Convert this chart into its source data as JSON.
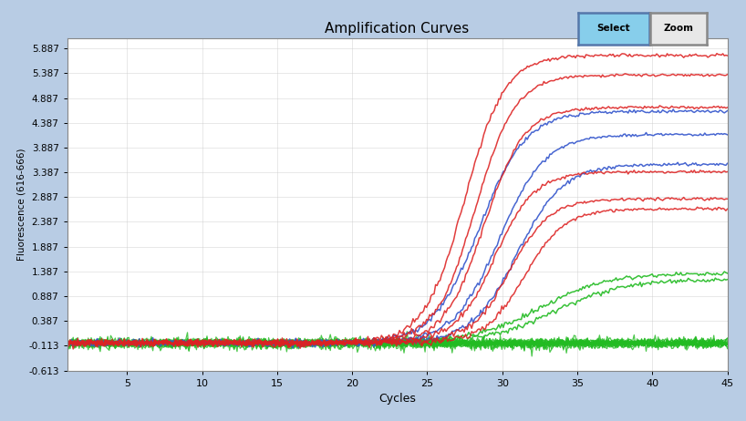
{
  "title": "Amplification Curves",
  "xlabel": "Cycles",
  "ylabel": "Fluorescence (616-666)",
  "xlim": [
    1,
    45
  ],
  "ylim": [
    -0.613,
    6.1
  ],
  "yticks": [
    -0.613,
    -0.113,
    0.387,
    0.887,
    1.387,
    1.887,
    2.387,
    2.887,
    3.387,
    3.887,
    4.387,
    4.887,
    5.387,
    5.887
  ],
  "xticks": [
    5,
    10,
    15,
    20,
    25,
    30,
    35,
    40,
    45
  ],
  "background_color": "#b8cce4",
  "plot_bg_color": "#ffffff",
  "red_curves": {
    "midpoints": [
      27.5,
      28.2,
      28.8,
      29.5,
      30.5,
      31.5
    ],
    "plateaus": [
      5.75,
      5.35,
      4.7,
      3.4,
      2.85,
      2.65
    ],
    "steepness": 0.75,
    "baseline": -0.055,
    "noise_flat": 0.035,
    "noise_plateau": 0.015
  },
  "blue_curves": {
    "midpoints": [
      28.5,
      29.8,
      31.0
    ],
    "plateaus": [
      4.62,
      4.15,
      3.55
    ],
    "steepness": 0.65,
    "baseline": -0.055,
    "noise_flat": 0.032,
    "noise_plateau": 0.015
  },
  "green_high_curves": {
    "midpoints": [
      32.5,
      33.5
    ],
    "plateaus": [
      1.35,
      1.22
    ],
    "steepness": 0.45,
    "baseline": -0.055,
    "noise_flat": 0.032,
    "noise_plateau": 0.02
  },
  "green_flat_curves": {
    "count": 14,
    "baselines": [
      -0.06,
      -0.07,
      -0.05,
      -0.065,
      -0.055,
      -0.075,
      -0.06,
      -0.05,
      -0.065,
      -0.07,
      -0.055,
      -0.06,
      -0.08,
      -0.065
    ],
    "noise_amps": [
      0.04,
      0.05,
      0.038,
      0.042,
      0.06,
      0.05,
      0.04,
      0.035,
      0.065,
      0.07,
      0.04,
      0.038,
      0.045,
      0.05
    ]
  }
}
